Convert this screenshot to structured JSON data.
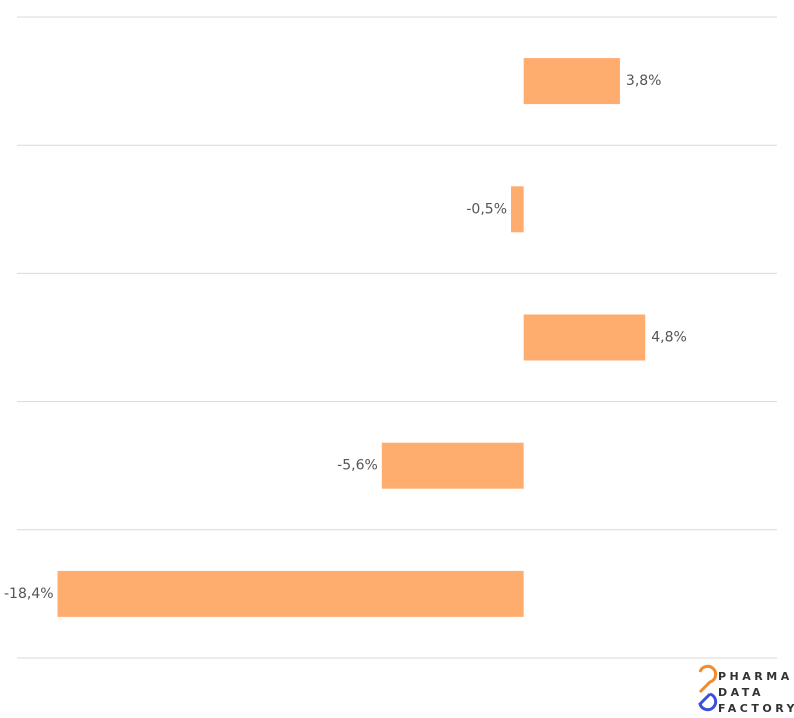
{
  "chart_data": {
    "type": "bar",
    "orientation": "horizontal",
    "categories": [
      null,
      null,
      null,
      null,
      null
    ],
    "values": [
      3.8,
      -0.5,
      4.8,
      -5.6,
      -18.4
    ],
    "value_labels": [
      "3,8%",
      "-0,5%",
      "4,8%",
      "-5,6%",
      "-18,4%"
    ],
    "color": "#ffad6f",
    "xlim": [
      -20,
      10
    ],
    "grid": true
  },
  "logo": [
    "PHARMA",
    "DATA",
    "FACTORY"
  ]
}
